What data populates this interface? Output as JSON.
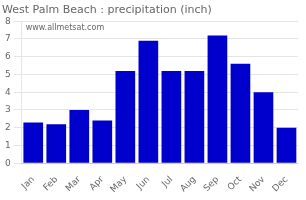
{
  "chart_data": {
    "type": "bar",
    "title": "West Palm Beach : precipitation (inch)",
    "categories": [
      "Jan",
      "Feb",
      "Mar",
      "Apr",
      "May",
      "Jun",
      "Jul",
      "Aug",
      "Sep",
      "Oct",
      "Nov",
      "Dec"
    ],
    "values": [
      2.3,
      2.2,
      3.0,
      2.4,
      5.2,
      6.9,
      5.2,
      5.2,
      7.2,
      5.6,
      4.0,
      2.0
    ],
    "color": "#0000cc",
    "ylim": [
      0,
      8
    ],
    "yticks": [
      0,
      1,
      2,
      3,
      4,
      5,
      6,
      7,
      8
    ],
    "grid": true,
    "annotations": [
      "www.allmetsat.com"
    ]
  }
}
